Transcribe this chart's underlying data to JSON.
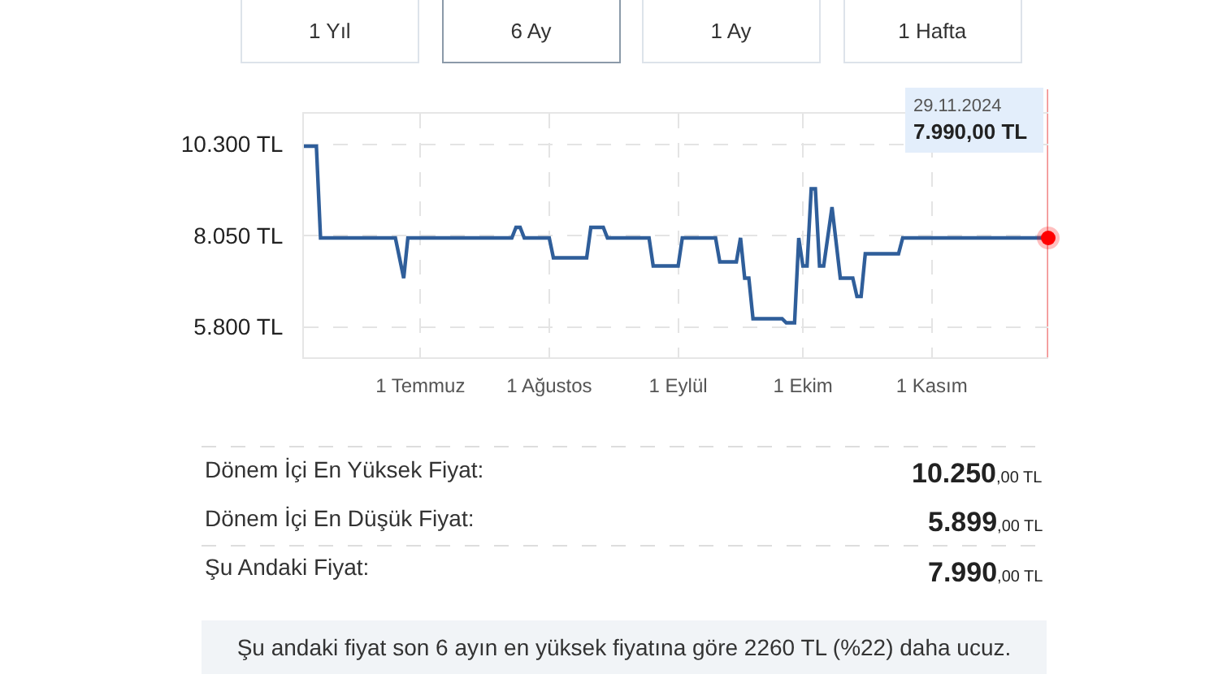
{
  "chart_data": {
    "type": "line",
    "series": [
      {
        "color": "#2f5e9a",
        "x": [
          "2024-06-03",
          "2024-06-06",
          "2024-06-07",
          "2024-06-25",
          "2024-06-27",
          "2024-06-28",
          "2024-07-23",
          "2024-07-24",
          "2024-07-25",
          "2024-07-26",
          "2024-08-01",
          "2024-08-02",
          "2024-08-10",
          "2024-08-11",
          "2024-08-14",
          "2024-08-15",
          "2024-08-25",
          "2024-08-26",
          "2024-09-01",
          "2024-09-02",
          "2024-09-10",
          "2024-09-11",
          "2024-09-15",
          "2024-09-16",
          "2024-09-17",
          "2024-09-18",
          "2024-09-19",
          "2024-09-26",
          "2024-09-27",
          "2024-09-29",
          "2024-09-30",
          "2024-10-01",
          "2024-10-02",
          "2024-10-03",
          "2024-10-04",
          "2024-10-05",
          "2024-10-06",
          "2024-10-08",
          "2024-10-10",
          "2024-10-13",
          "2024-10-14",
          "2024-10-15",
          "2024-10-16",
          "2024-10-24",
          "2024-10-25",
          "2024-11-29"
        ],
        "values": [
          10250,
          10250,
          7990,
          7990,
          7000,
          7990,
          7990,
          8250,
          8250,
          7990,
          7990,
          7500,
          7500,
          8250,
          8250,
          7990,
          7990,
          7300,
          7300,
          7990,
          7990,
          7400,
          7400,
          7990,
          7000,
          7000,
          6000,
          6000,
          5900,
          5900,
          7990,
          7300,
          7300,
          9200,
          9200,
          7300,
          7300,
          8750,
          7000,
          7000,
          6550,
          6550,
          7600,
          7600,
          7990,
          7990
        ]
      },
      {
        "type": "scatter",
        "color": "#ff0000",
        "x": [
          "2024-11-29"
        ],
        "values": [
          7990
        ]
      }
    ],
    "xlim": [
      "2024-06-03",
      "2024-11-29"
    ],
    "xticks": [
      {
        "value": "2024-07-01",
        "label": "1 Temmuz"
      },
      {
        "value": "2024-08-01",
        "label": "1 Ağustos"
      },
      {
        "value": "2024-09-01",
        "label": "1 Eylül"
      },
      {
        "value": "2024-10-01",
        "label": "1 Ekim"
      },
      {
        "value": "2024-11-01",
        "label": "1 Kasım"
      }
    ],
    "ylim": [
      5050,
      11050
    ],
    "yticks": [
      {
        "value": 5800,
        "label": "5.800 TL"
      },
      {
        "value": 8050,
        "label": "8.050 TL"
      },
      {
        "value": 10300,
        "label": "10.300 TL"
      }
    ],
    "grid": true,
    "ref_lines": [
      {
        "axis": "x",
        "value": "2024-11-29",
        "color": "#f28b8b"
      }
    ],
    "annotations": [
      "1 Yıl",
      "6 Ay",
      "1 Ay",
      "1 Hafta",
      "29.11.2024\n7.990,00 TL",
      "Dönem İçi En Yüksek Fiyat:",
      "10.250,00 TL",
      "Dönem İçi En Düşük Fiyat:",
      "5.899,00 TL",
      "Şu Andaki Fiyat:",
      "7.990,00 TL",
      "Şu andaki fiyat son 6 ayın en yüksek fiyatına göre 2260 TL (%22) daha ucuz."
    ]
  }
}
